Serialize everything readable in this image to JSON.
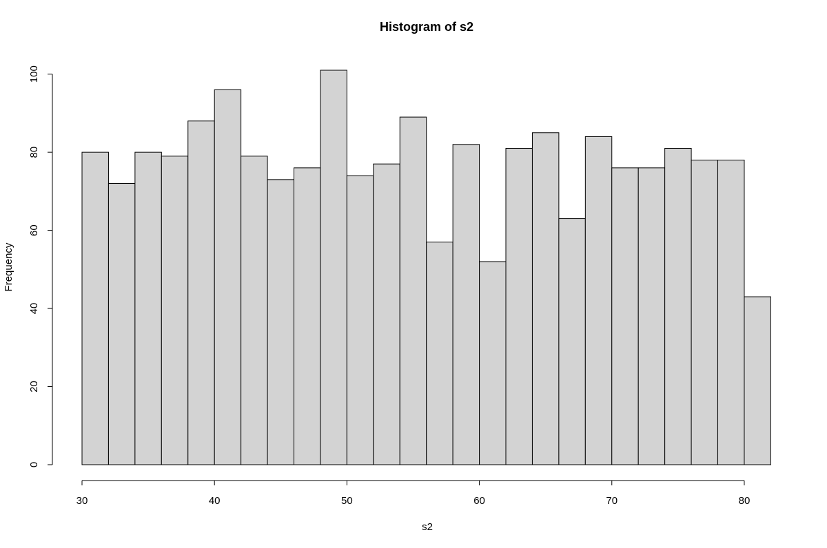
{
  "chart_data": {
    "type": "histogram",
    "title": "Histogram of s2",
    "x_label": "s2",
    "y_label": "Frequency",
    "bins": [
      30,
      32,
      34,
      36,
      38,
      40,
      42,
      44,
      46,
      48,
      50,
      52,
      54,
      56,
      58,
      60,
      62,
      64,
      66,
      68,
      70,
      72,
      74,
      76,
      78,
      80,
      82
    ],
    "counts": [
      80,
      72,
      80,
      79,
      88,
      96,
      79,
      73,
      76,
      101,
      74,
      77,
      89,
      57,
      82,
      52,
      81,
      85,
      63,
      84,
      76,
      76,
      81,
      78,
      78,
      43
    ],
    "color": "#d3d3d3",
    "xlim": [
      30,
      82
    ],
    "xticks": [
      30,
      40,
      50,
      60,
      70,
      80
    ],
    "ylim": [
      0,
      101
    ],
    "yticks": [
      0,
      20,
      40,
      60,
      80,
      100
    ]
  }
}
